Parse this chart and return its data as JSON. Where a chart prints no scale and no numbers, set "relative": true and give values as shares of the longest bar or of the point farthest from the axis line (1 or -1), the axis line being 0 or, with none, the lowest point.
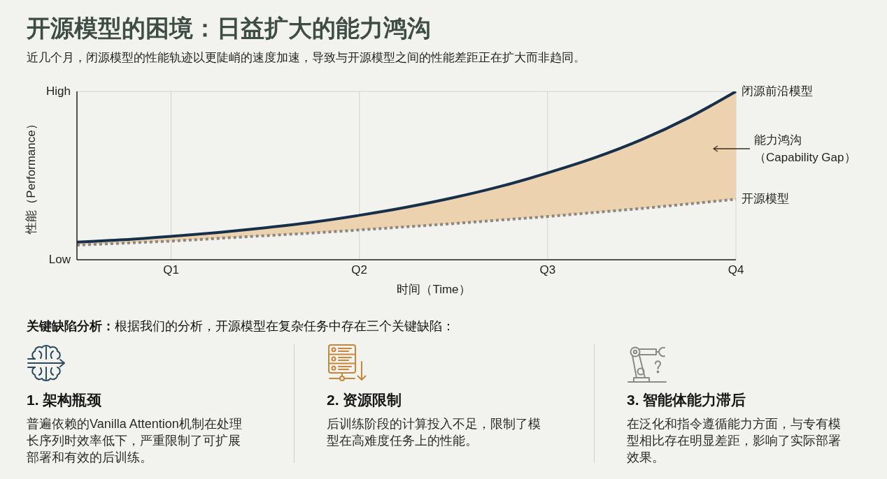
{
  "chart_data": [
    {
      "type": "line",
      "title": "开源模型的困境：日益扩大的能力鸿沟",
      "subtitle": "近几个月，闭源模型的性能轨迹以更陡峭的速度加速，导致与开源模型之间的性能差距正在扩大而非趋同。",
      "xlabel": "时间（Time）",
      "ylabel": "性能（Performance）",
      "categories": [
        null,
        null,
        "Q1",
        null,
        null,
        null,
        "Q2",
        null,
        null,
        null,
        "Q3",
        null,
        null,
        null,
        "Q4"
      ],
      "relative": true,
      "grid": true,
      "marker": "none",
      "annotations": [
        "High",
        "Low",
        {
          "text": "能力鸿沟（Capability Gap）",
          "x": "Q4",
          "y": 0.66
        }
      ],
      "series": [
        {
          "type": "line",
          "name": "闭源前沿模型",
          "color": "#17304a",
          "line_style": "solid",
          "values": [
            0.105,
            0.119,
            0.139,
            0.162,
            0.19,
            0.223,
            0.264,
            0.312,
            0.369,
            0.436,
            0.516,
            0.606,
            0.714,
            0.845,
            1
          ],
          "lower": [
            0.087,
            0.099,
            0.111,
            0.127,
            0.143,
            0.159,
            0.177,
            0.196,
            0.215,
            0.236,
            0.257,
            0.281,
            0.305,
            0.332,
            0.36
          ],
          "upper": [
            0.105,
            0.119,
            0.139,
            0.162,
            0.19,
            0.223,
            0.264,
            0.312,
            0.369,
            0.436,
            0.516,
            0.606,
            0.714,
            0.845,
            1
          ]
        },
        {
          "type": "line",
          "name": "开源模型",
          "color": "#8b8782",
          "line_style": "dotted",
          "values": [
            0.087,
            0.099,
            0.111,
            0.127,
            0.143,
            0.159,
            0.177,
            0.196,
            0.215,
            0.236,
            0.257,
            0.281,
            0.305,
            0.332,
            0.36
          ]
        }
      ]
    },
    {
      "type": "other",
      "title": "关键缺陷分析：",
      "subtitle": "根据我们的分析，开源模型在复杂任务中存在三个关键缺陷：",
      "annotations": [
        "1. 架构瓶颈",
        "普遍依赖的Vanilla Attention机制在处理长序列时效率低下，严重限制了可扩展部署和有效的后训练。",
        "2. 资源限制",
        "后训练阶段的计算投入不足，限制了模型在高难度任务上的性能。",
        "3. 智能体能力滞后",
        "在泛化和指令遵循能力方面，与专有模型相比存在明显差距，影响了实际部署效果。"
      ]
    }
  ]
}
